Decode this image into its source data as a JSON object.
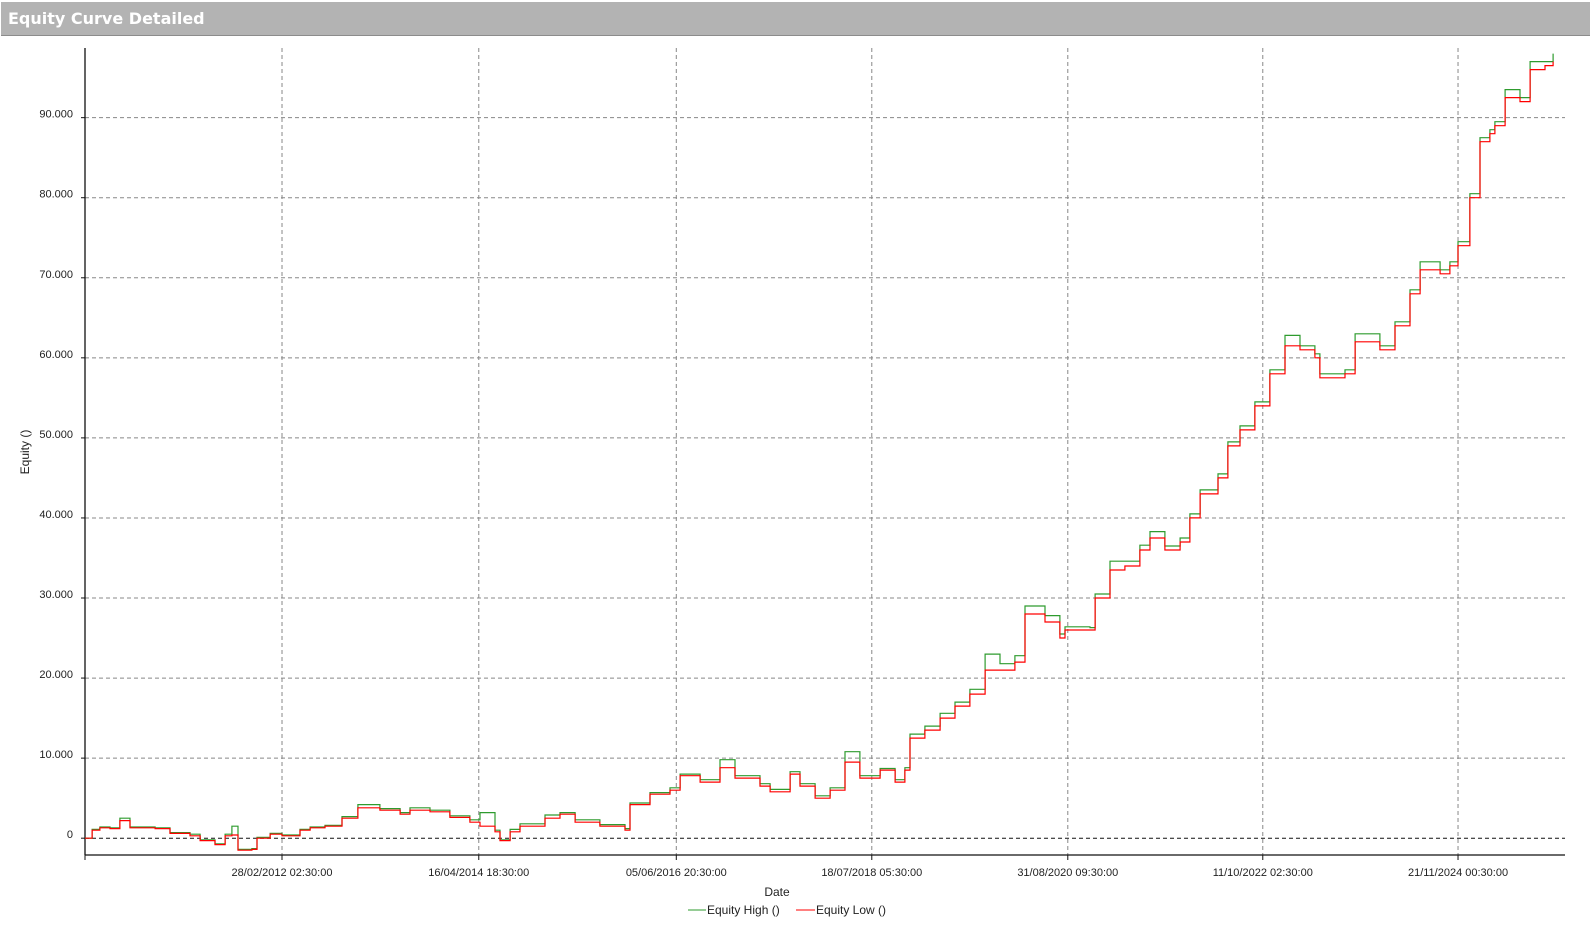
{
  "window": {
    "title": "Equity Curve Detailed"
  },
  "chart_data": {
    "type": "line",
    "title": "",
    "xlabel": "Date",
    "ylabel": "Equity ()",
    "xlim": [
      "2010-01-10",
      "2026-01-18"
    ],
    "ylim": [
      -2100,
      98700
    ],
    "grid": true,
    "legend_position": "bottom",
    "x_ticks": [
      {
        "date": "2012-02-28",
        "label": "28/02/2012 02:30:00"
      },
      {
        "date": "2014-04-16",
        "label": "16/04/2014 18:30:00"
      },
      {
        "date": "2016-06-05",
        "label": "05/06/2016 20:30:00"
      },
      {
        "date": "2018-07-18",
        "label": "18/07/2018 05:30:00"
      },
      {
        "date": "2020-08-31",
        "label": "31/08/2020 09:30:00"
      },
      {
        "date": "2022-10-11",
        "label": "11/10/2022 02:30:00"
      },
      {
        "date": "2024-11-21",
        "label": "21/11/2024 00:30:00"
      }
    ],
    "y_ticks": [
      {
        "value": 0,
        "label": "0"
      },
      {
        "value": 10000,
        "label": "10.000"
      },
      {
        "value": 20000,
        "label": "20.000"
      },
      {
        "value": 30000,
        "label": "30.000"
      },
      {
        "value": 40000,
        "label": "40.000"
      },
      {
        "value": 50000,
        "label": "50.000"
      },
      {
        "value": 60000,
        "label": "60.000"
      },
      {
        "value": 70000,
        "label": "70.000"
      },
      {
        "value": 80000,
        "label": "80.000"
      },
      {
        "value": 90000,
        "label": "90.000"
      }
    ],
    "x": [
      "2010-01-10",
      "2010-02-07",
      "2010-03-10",
      "2010-04-19",
      "2010-05-28",
      "2010-07-07",
      "2010-10-14",
      "2010-12-12",
      "2011-03-01",
      "2011-04-10",
      "2011-06-08",
      "2011-07-18",
      "2011-08-14",
      "2011-09-07",
      "2011-11-01",
      "2011-11-21",
      "2012-01-12",
      "2012-02-28",
      "2012-05-09",
      "2012-06-18",
      "2012-08-16",
      "2012-10-22",
      "2012-12-24",
      "2013-03-21",
      "2013-06-09",
      "2013-07-18",
      "2013-10-05",
      "2013-12-23",
      "2014-03-12",
      "2014-04-21",
      "2014-06-19",
      "2014-07-09",
      "2014-08-18",
      "2014-09-26",
      "2015-01-03",
      "2015-03-03",
      "2015-05-02",
      "2015-08-08",
      "2015-11-15",
      "2015-12-05",
      "2016-02-22",
      "2016-05-11",
      "2016-06-20",
      "2016-09-07",
      "2016-11-25",
      "2017-01-23",
      "2017-05-02",
      "2017-06-11",
      "2017-08-29",
      "2017-10-07",
      "2017-12-06",
      "2018-02-03",
      "2018-04-03",
      "2018-06-01",
      "2018-08-20",
      "2018-10-18",
      "2018-11-26",
      "2018-12-16",
      "2019-02-13",
      "2019-04-14",
      "2019-06-12",
      "2019-08-10",
      "2019-10-09",
      "2019-12-07",
      "2020-02-04",
      "2020-03-15",
      "2020-06-02",
      "2020-07-31",
      "2020-08-20",
      "2020-11-27",
      "2020-12-17",
      "2021-02-14",
      "2021-04-14",
      "2021-06-12",
      "2021-07-22",
      "2021-09-19",
      "2021-11-18",
      "2021-12-27",
      "2022-02-05",
      "2022-04-17",
      "2022-05-26",
      "2022-07-13",
      "2022-09-10",
      "2022-11-08",
      "2023-01-07",
      "2023-03-07",
      "2023-05-05",
      "2023-05-25",
      "2023-09-01",
      "2023-10-11",
      "2024-01-17",
      "2024-03-17",
      "2024-05-15",
      "2024-06-24",
      "2024-09-11",
      "2024-10-20",
      "2024-11-21",
      "2025-01-07",
      "2025-02-16",
      "2025-03-27",
      "2025-04-16",
      "2025-05-26",
      "2025-07-24",
      "2025-09-02",
      "2025-10-31",
      "2025-12-02"
    ],
    "series": [
      {
        "name": "Equity High ()",
        "color": "#2e9b2e",
        "values": [
          0,
          1100,
          1400,
          1300,
          2500,
          1400,
          1300,
          700,
          500,
          -200,
          -700,
          500,
          1500,
          -1400,
          -1300,
          100,
          600,
          400,
          1100,
          1400,
          1600,
          2700,
          4200,
          3700,
          3200,
          3800,
          3500,
          2800,
          2300,
          3200,
          1000,
          -200,
          1100,
          1800,
          2900,
          3200,
          2300,
          1700,
          1200,
          4400,
          5700,
          6300,
          8000,
          7300,
          9800,
          7800,
          6800,
          6100,
          8300,
          6800,
          5300,
          6300,
          10800,
          7800,
          8700,
          7300,
          8800,
          13000,
          14000,
          15600,
          17000,
          18600,
          23000,
          21800,
          22800,
          29000,
          27800,
          25500,
          26400,
          26300,
          30500,
          34600,
          34600,
          36600,
          38300,
          36500,
          37500,
          40500,
          43500,
          45500,
          49500,
          51500,
          54500,
          58500,
          62800,
          61500,
          60500,
          58000,
          58500,
          63000,
          61500,
          64500,
          68500,
          72000,
          71000,
          72000,
          74500,
          80500,
          87500,
          88500,
          89500,
          93500,
          92500,
          97000,
          97000,
          98000
        ]
      },
      {
        "name": "Equity Low ()",
        "color": "#ff0000",
        "values": [
          0,
          1000,
          1300,
          1200,
          2200,
          1300,
          1200,
          600,
          300,
          -300,
          -800,
          300,
          400,
          -1500,
          -1400,
          0,
          500,
          300,
          1000,
          1300,
          1500,
          2500,
          3800,
          3500,
          3000,
          3500,
          3300,
          2600,
          2000,
          1500,
          800,
          -300,
          800,
          1500,
          2500,
          3000,
          2000,
          1500,
          1000,
          4200,
          5500,
          6000,
          7800,
          7000,
          8800,
          7500,
          6500,
          5800,
          8000,
          6500,
          5000,
          6000,
          9500,
          7500,
          8500,
          7000,
          8500,
          12500,
          13500,
          15000,
          16500,
          18000,
          21000,
          21000,
          22000,
          28000,
          27000,
          25000,
          26000,
          26000,
          30000,
          33500,
          34000,
          36000,
          37500,
          36000,
          37000,
          40000,
          43000,
          45000,
          49000,
          51000,
          54000,
          58000,
          61500,
          61000,
          60000,
          57500,
          58000,
          62000,
          61000,
          64000,
          68000,
          71000,
          70500,
          71500,
          74000,
          80000,
          87000,
          88000,
          89000,
          92500,
          92000,
          96000,
          96500,
          97000
        ]
      }
    ]
  }
}
